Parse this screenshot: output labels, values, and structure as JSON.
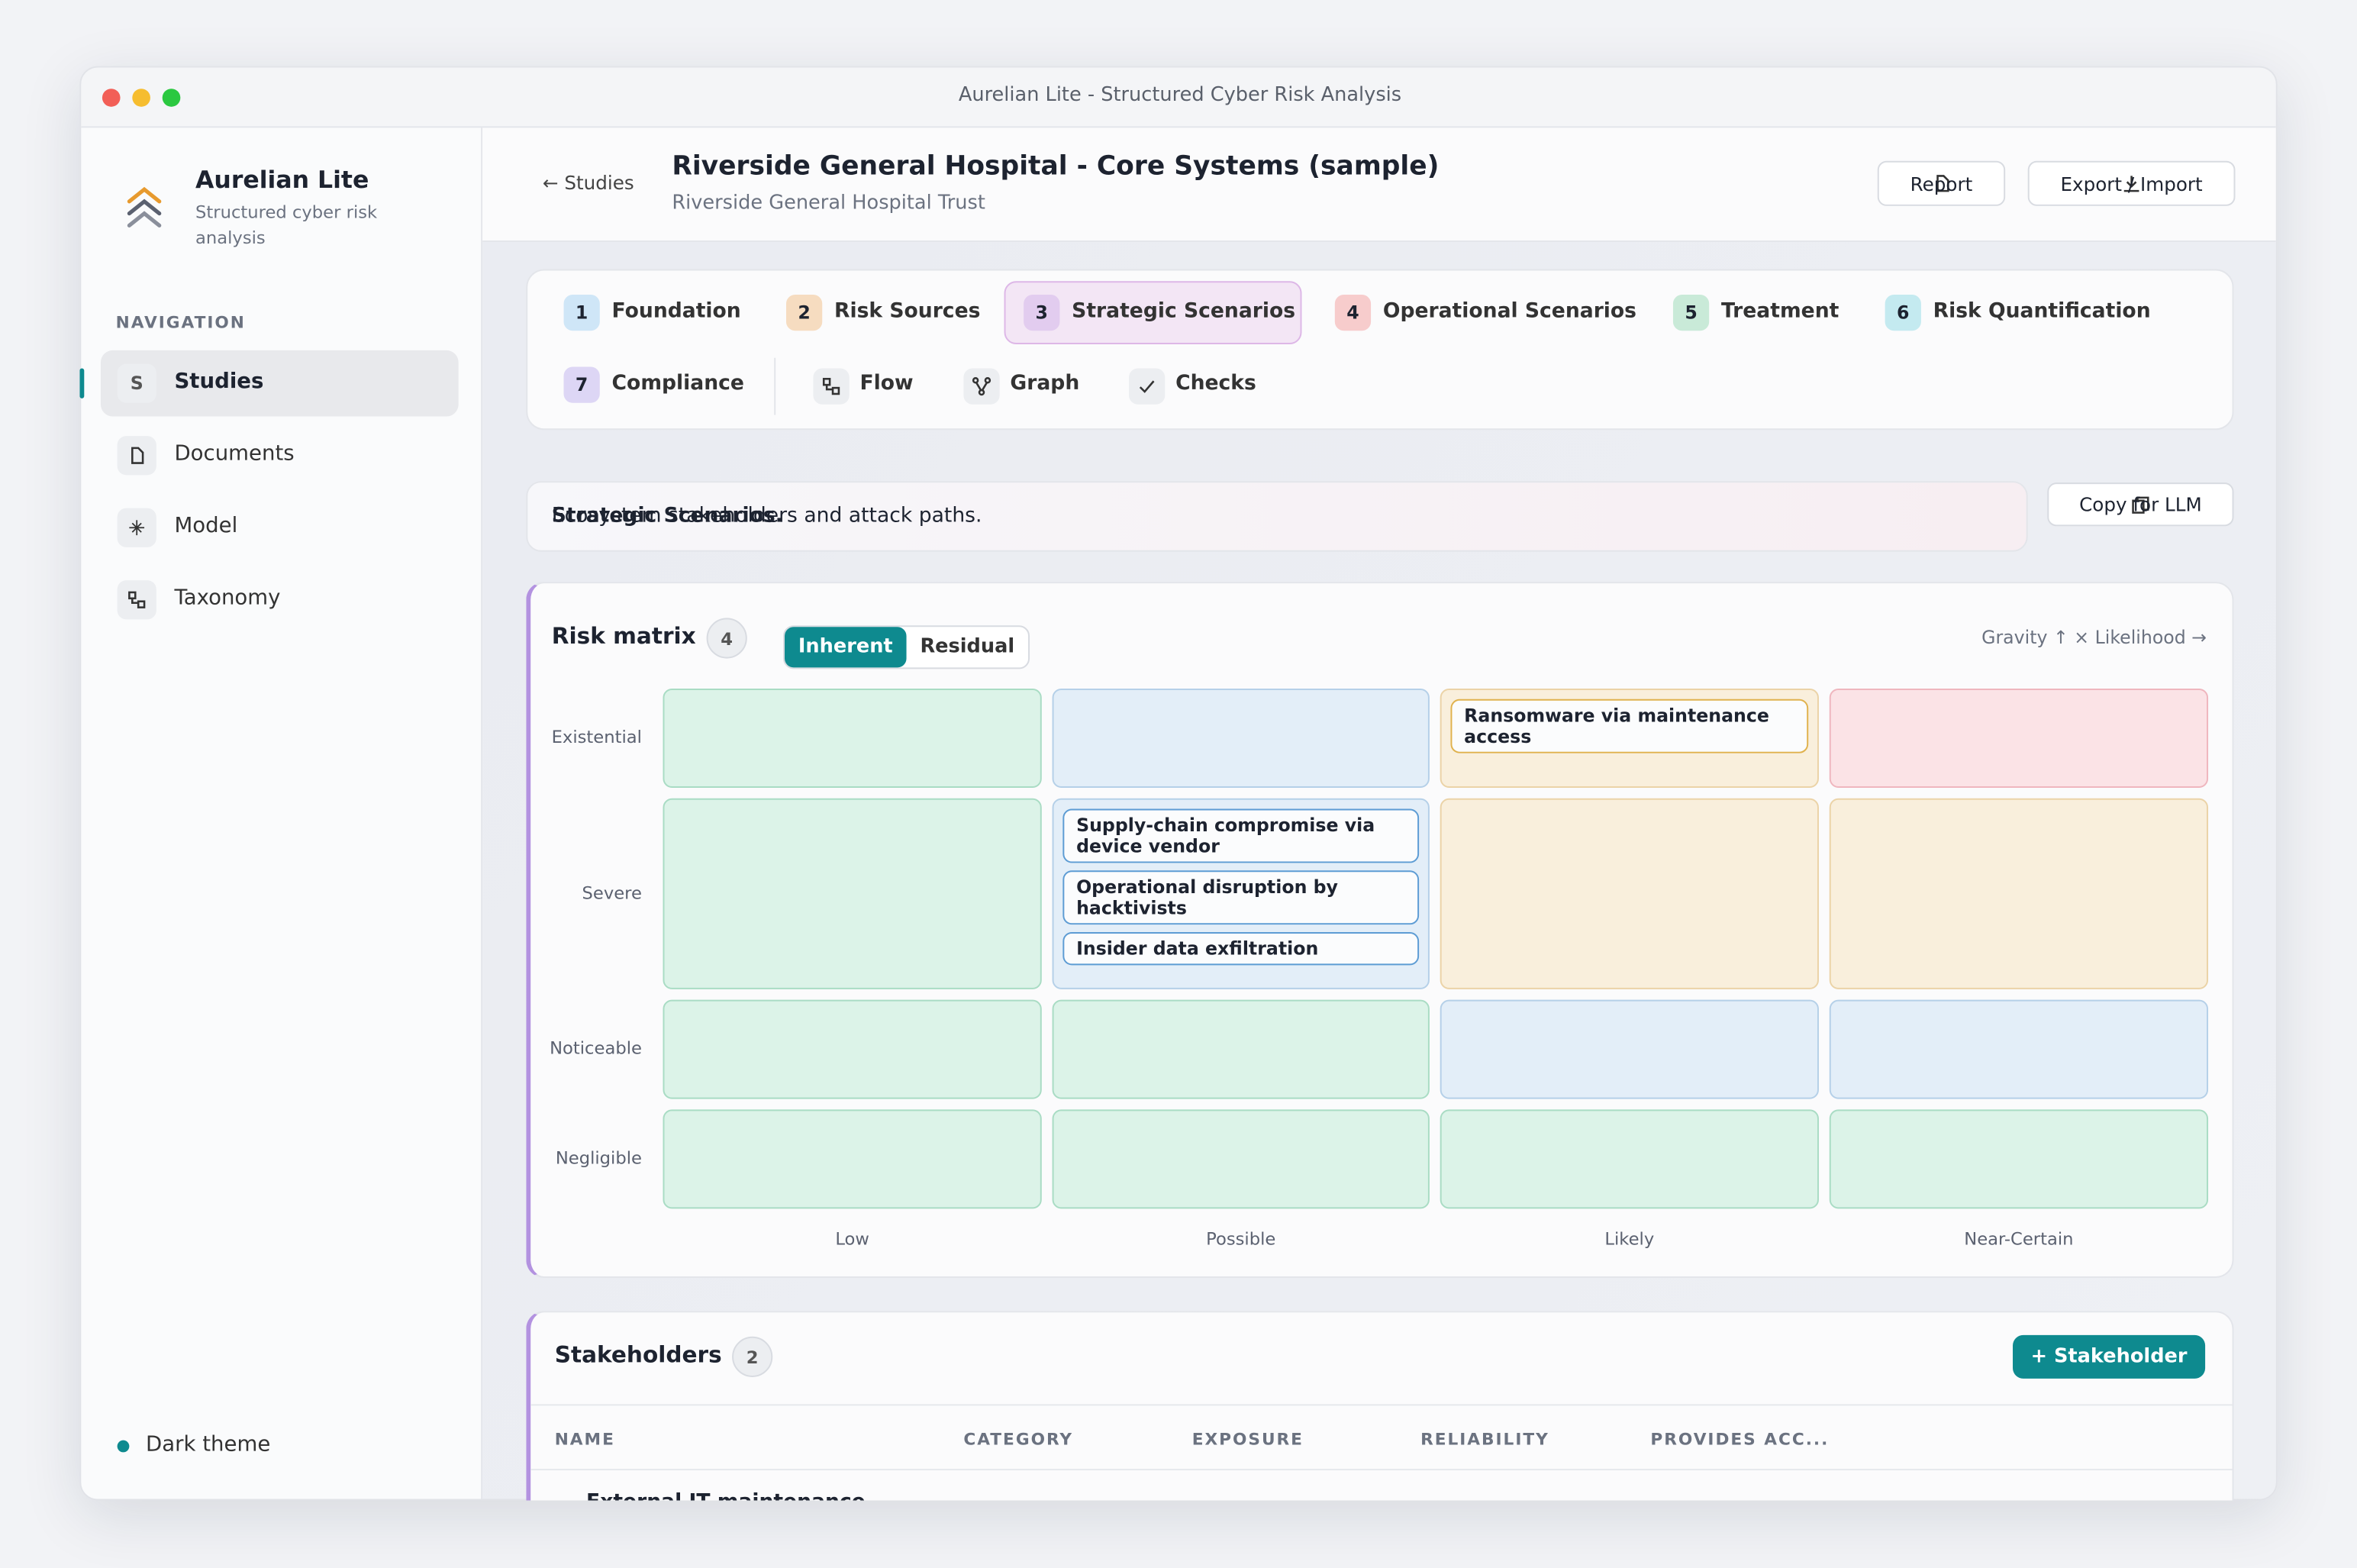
{
  "window": {
    "title": "Aurelian Lite - Structured Cyber Risk Analysis"
  },
  "sidebar": {
    "app_name": "Aurelian Lite",
    "tagline": "Structured cyber risk analysis",
    "nav_heading": "NAVIGATION",
    "nav": [
      {
        "icon": "S",
        "label": "Studies",
        "active": true
      },
      {
        "label": "Documents"
      },
      {
        "label": "Model"
      },
      {
        "label": "Taxonomy"
      }
    ],
    "theme_toggle": "Dark theme"
  },
  "header": {
    "back": "← Studies",
    "title": "Riverside General Hospital - Core Systems (sample)",
    "subtitle": "Riverside General Hospital Trust",
    "buttons": [
      "Report",
      "Export / Import"
    ]
  },
  "tabs": [
    {
      "number": "1",
      "label": "Foundation",
      "color": "#cfe6f7"
    },
    {
      "number": "2",
      "label": "Risk Sources",
      "color": "#f6dcc0"
    },
    {
      "number": "3",
      "label": "Strategic Scenarios",
      "color": "#e2ccef",
      "active": true
    },
    {
      "number": "4",
      "label": "Operational Scenarios",
      "color": "#f7cccc"
    },
    {
      "number": "5",
      "label": "Treatment",
      "color": "#c9ead8"
    },
    {
      "number": "6",
      "label": "Risk Quantification",
      "color": "#c4eaf0"
    },
    {
      "number": "7",
      "label": "Compliance",
      "color": "#ddd6f5"
    }
  ],
  "tools": [
    "Flow",
    "Graph",
    "Checks"
  ],
  "banner": {
    "title": "Strategic Scenarios.",
    "text": "Ecosystem stakeholders and attack paths."
  },
  "copy_button": "Copy for LLM",
  "risk_matrix": {
    "title": "Risk matrix",
    "count": "4",
    "toggle": [
      "Inherent",
      "Residual"
    ],
    "axis_hint": "Gravity ↑ × Likelihood →",
    "rows": [
      "Existential",
      "Severe",
      "Noticeable",
      "Negligible"
    ],
    "columns": [
      "Low",
      "Possible",
      "Likely",
      "Near-Certain"
    ],
    "cell_levels": [
      [
        "green",
        "blue",
        "orange",
        "red"
      ],
      [
        "green",
        "blue",
        "orange",
        "orange"
      ],
      [
        "green",
        "green",
        "blue",
        "blue"
      ],
      [
        "green",
        "green",
        "green",
        "green"
      ]
    ],
    "cells": [
      [
        [],
        [],
        [
          "Ransomware via maintenance access"
        ],
        []
      ],
      [
        [],
        [
          "Supply-chain compromise via device vendor",
          "Operational disruption by hacktivists",
          "Insider data exfiltration"
        ],
        [],
        []
      ],
      [
        [],
        [],
        [],
        []
      ],
      [
        [],
        [],
        [],
        []
      ]
    ]
  },
  "stakeholders": {
    "title": "Stakeholders",
    "count": "2",
    "add_button": "+ Stakeholder",
    "columns": [
      "NAME",
      "CATEGORY",
      "EXPOSURE",
      "RELIABILITY",
      "PROVIDES ACC..."
    ],
    "rows": [
      [
        "External IT maintenance"
      ]
    ]
  }
}
